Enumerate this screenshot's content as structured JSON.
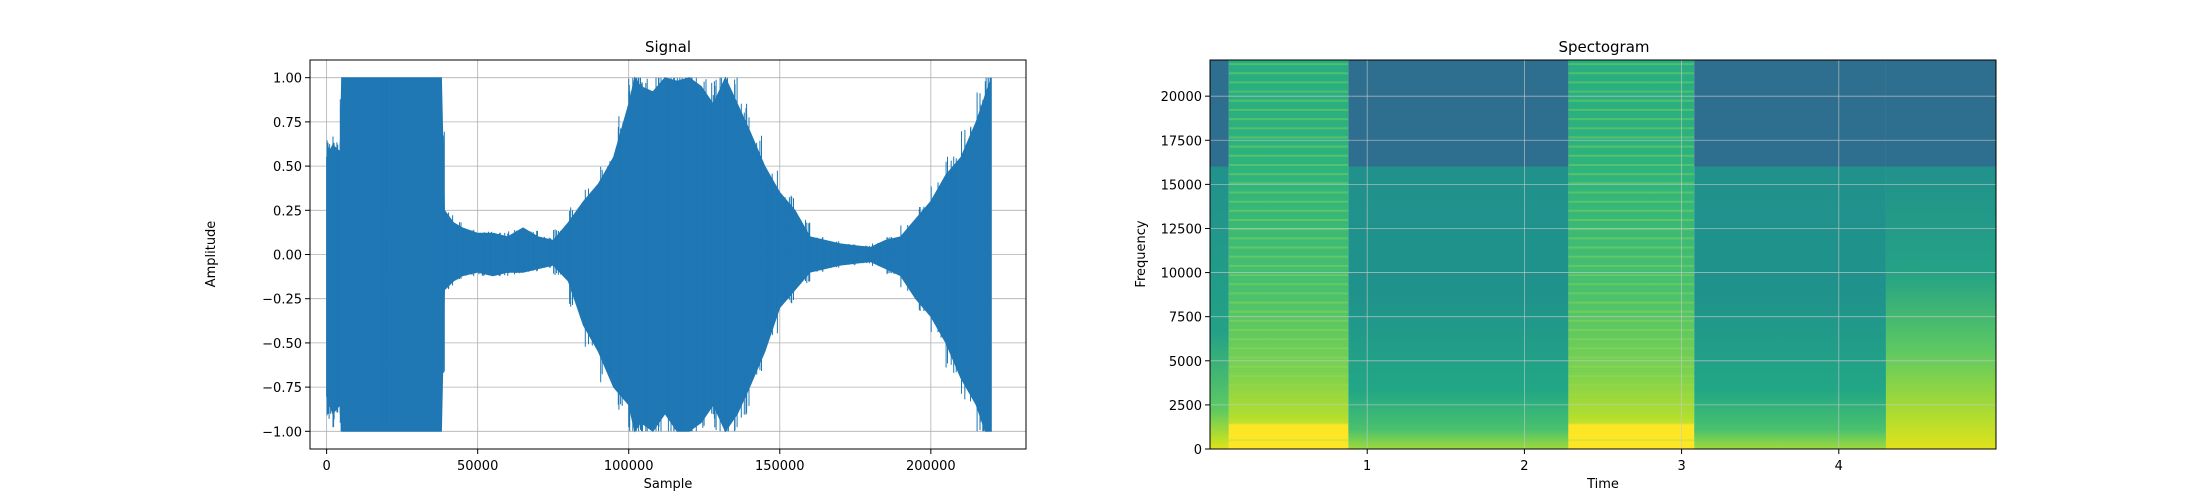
{
  "chart_data": [
    {
      "type": "line",
      "title": "Signal",
      "xlabel": "Sample",
      "ylabel": "Amplitude",
      "xlim": [
        -5500,
        231500
      ],
      "ylim": [
        -1.1,
        1.1
      ],
      "xticks": [
        0,
        50000,
        100000,
        150000,
        200000
      ],
      "xtick_labels": [
        "0",
        "50000",
        "100000",
        "150000",
        "200000"
      ],
      "yticks": [
        -1.0,
        -0.75,
        -0.5,
        -0.25,
        0.0,
        0.25,
        0.5,
        0.75,
        1.0
      ],
      "ytick_labels": [
        "−1.00",
        "−0.75",
        "−0.50",
        "−0.25",
        "0.00",
        "0.25",
        "0.50",
        "0.75",
        "1.00"
      ],
      "grid": true,
      "series": [
        {
          "color": "#1f77b4",
          "envelope": {
            "sample": [
              0,
              2000,
              4500,
              5000,
              38000,
              39000,
              42000,
              45000,
              50000,
              55000,
              60000,
              65000,
              70000,
              75000,
              80000,
              85000,
              90000,
              95000,
              100000,
              102000,
              104000,
              108000,
              112000,
              116000,
              120000,
              124000,
              128000,
              132000,
              136000,
              140000,
              145000,
              150000,
              155000,
              160000,
              165000,
              170000,
              175000,
              180000,
              185000,
              190000,
              195000,
              200000,
              205000,
              210000,
              215000,
              218000,
              220000
            ],
            "upper": [
              0.55,
              0.62,
              0.58,
              1.0,
              1.0,
              0.25,
              0.18,
              0.15,
              0.12,
              0.12,
              0.1,
              0.15,
              0.1,
              0.08,
              0.18,
              0.3,
              0.4,
              0.55,
              0.85,
              1.0,
              0.95,
              0.92,
              1.0,
              0.98,
              1.0,
              0.95,
              0.85,
              1.0,
              0.85,
              0.7,
              0.5,
              0.35,
              0.25,
              0.1,
              0.08,
              0.06,
              0.05,
              0.04,
              0.08,
              0.1,
              0.2,
              0.3,
              0.45,
              0.55,
              0.75,
              0.9,
              1.0
            ],
            "lower": [
              -0.8,
              -0.9,
              -0.85,
              -1.0,
              -1.0,
              -0.2,
              -0.15,
              -0.12,
              -0.1,
              -0.12,
              -0.1,
              -0.1,
              -0.08,
              -0.06,
              -0.15,
              -0.4,
              -0.55,
              -0.75,
              -0.85,
              -1.0,
              -0.95,
              -1.0,
              -0.9,
              -1.0,
              -1.0,
              -0.95,
              -0.85,
              -1.0,
              -0.9,
              -0.75,
              -0.55,
              -0.3,
              -0.2,
              -0.1,
              -0.08,
              -0.06,
              -0.05,
              -0.04,
              -0.08,
              -0.12,
              -0.25,
              -0.35,
              -0.5,
              -0.7,
              -0.85,
              -1.0,
              -1.0
            ]
          }
        }
      ]
    },
    {
      "type": "heatmap",
      "title": "Spectogram",
      "xlabel": "Time",
      "ylabel": "Frequency",
      "xlim": [
        0,
        5.0
      ],
      "ylim": [
        0,
        22050
      ],
      "xticks": [
        1,
        2,
        3,
        4
      ],
      "xtick_labels": [
        "1",
        "2",
        "3",
        "4"
      ],
      "yticks": [
        0,
        2500,
        5000,
        7500,
        10000,
        12500,
        15000,
        17500,
        20000
      ],
      "ytick_labels": [
        "0",
        "2500",
        "5000",
        "7500",
        "10000",
        "12500",
        "15000",
        "17500",
        "20000"
      ],
      "grid": true,
      "colormap": "viridis",
      "segments": [
        {
          "start": 0.0,
          "end": 0.12,
          "character": "quiet",
          "upper_band_cutoff": 16000
        },
        {
          "start": 0.12,
          "end": 0.88,
          "character": "loud-tonal",
          "upper_band_cutoff": 22050
        },
        {
          "start": 0.88,
          "end": 2.28,
          "character": "moderate",
          "upper_band_cutoff": 16000
        },
        {
          "start": 2.28,
          "end": 3.08,
          "character": "loud-tonal",
          "upper_band_cutoff": 22050
        },
        {
          "start": 3.08,
          "end": 4.3,
          "character": "moderate",
          "upper_band_cutoff": 16000
        },
        {
          "start": 4.3,
          "end": 5.0,
          "character": "rising",
          "upper_band_cutoff": 16000
        }
      ]
    }
  ]
}
